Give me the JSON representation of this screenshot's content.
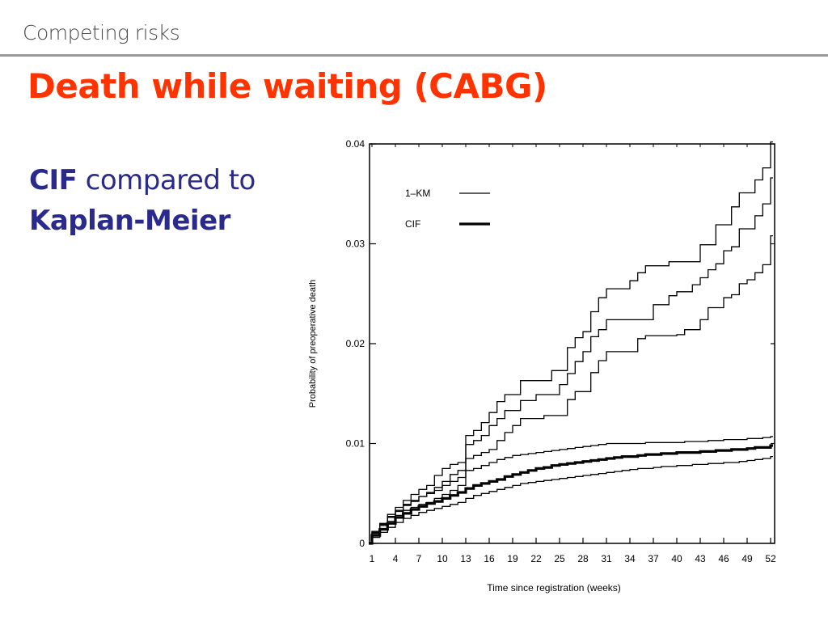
{
  "header": {
    "topic": "Competing risks",
    "title": "Death while waiting (CABG)"
  },
  "body": {
    "cif_word": "CIF",
    "compared_text": " compared to",
    "km_text": "Kaplan-Meier"
  },
  "colors": {
    "title": "#ff3300",
    "body_text": "#2a2a8c",
    "topic": "#4a4a4a",
    "lines": "#000000"
  },
  "chart_data": {
    "type": "line",
    "step": true,
    "title": "",
    "xlabel": "Time since registration (weeks)",
    "ylabel": "Probability of preoperative death",
    "xlim": [
      0,
      53
    ],
    "ylim": [
      0,
      0.04
    ],
    "x_ticks": [
      1,
      4,
      7,
      10,
      13,
      16,
      19,
      22,
      25,
      28,
      31,
      34,
      37,
      40,
      43,
      46,
      49,
      52
    ],
    "y_ticks": [
      0,
      0.01,
      0.02,
      0.03,
      0.04
    ],
    "y_tick_labels": [
      "0",
      "0.01",
      "0.02",
      "0.03",
      "0.04"
    ],
    "grid": false,
    "legend": {
      "placement": "top-left",
      "entries": [
        {
          "label": "1–KM",
          "style": "thin"
        },
        {
          "label": "CIF",
          "style": "thick"
        }
      ]
    },
    "series": [
      {
        "style": "thin",
        "x": [
          0,
          1,
          2,
          3,
          4,
          5,
          6,
          7,
          8,
          9,
          10,
          11,
          12,
          13,
          14,
          15,
          16,
          17,
          18,
          19,
          20,
          21,
          22,
          23,
          24,
          25,
          26,
          27,
          28,
          29,
          30,
          31,
          32,
          33,
          34,
          35,
          36,
          37,
          38,
          39,
          40,
          41,
          42,
          43,
          44,
          45,
          46,
          47,
          48,
          49,
          50,
          51,
          52
        ],
        "y": [
          0,
          0.0012,
          0.002,
          0.0029,
          0.0036,
          0.0043,
          0.0049,
          0.0054,
          0.0058,
          0.0068,
          0.0075,
          0.0079,
          0.0081,
          0.0108,
          0.0113,
          0.0121,
          0.0131,
          0.0142,
          0.0149,
          0.0149,
          0.0163,
          0.0163,
          0.0163,
          0.0163,
          0.0173,
          0.0173,
          0.0196,
          0.0206,
          0.0212,
          0.0232,
          0.0246,
          0.0255,
          0.0255,
          0.0255,
          0.0263,
          0.0271,
          0.0278,
          0.0278,
          0.0278,
          0.0282,
          0.0282,
          0.0282,
          0.0282,
          0.0299,
          0.0299,
          0.0319,
          0.0319,
          0.0337,
          0.0351,
          0.0351,
          0.0364,
          0.0376,
          0.0402
        ]
      },
      {
        "style": "thin",
        "x": [
          0,
          1,
          2,
          3,
          4,
          5,
          6,
          7,
          8,
          9,
          10,
          11,
          12,
          13,
          14,
          15,
          16,
          17,
          18,
          19,
          20,
          21,
          22,
          23,
          24,
          25,
          26,
          27,
          28,
          29,
          30,
          31,
          32,
          33,
          34,
          35,
          36,
          37,
          38,
          39,
          40,
          41,
          42,
          43,
          44,
          45,
          46,
          47,
          48,
          49,
          50,
          51,
          52
        ],
        "y": [
          0,
          0.001,
          0.0018,
          0.0026,
          0.0032,
          0.0038,
          0.0042,
          0.0047,
          0.0051,
          0.0056,
          0.0062,
          0.0069,
          0.0073,
          0.0099,
          0.0103,
          0.0108,
          0.0118,
          0.0125,
          0.0133,
          0.0133,
          0.0143,
          0.0143,
          0.0149,
          0.0149,
          0.0149,
          0.0159,
          0.017,
          0.0182,
          0.0192,
          0.0207,
          0.0214,
          0.0224,
          0.0224,
          0.0224,
          0.0224,
          0.0224,
          0.0224,
          0.0239,
          0.0239,
          0.0248,
          0.0252,
          0.0252,
          0.0259,
          0.0266,
          0.0274,
          0.028,
          0.0293,
          0.0297,
          0.0315,
          0.0315,
          0.0328,
          0.034,
          0.0366
        ]
      },
      {
        "style": "thin",
        "x": [
          0,
          1,
          2,
          3,
          4,
          5,
          6,
          7,
          8,
          9,
          10,
          11,
          12,
          13,
          14,
          15,
          16,
          17,
          18,
          19,
          20,
          21,
          22,
          23,
          24,
          25,
          26,
          27,
          28,
          29,
          30,
          31,
          32,
          33,
          34,
          35,
          36,
          37,
          38,
          39,
          40,
          41,
          42,
          43,
          44,
          45,
          46,
          47,
          48,
          49,
          50,
          51,
          52
        ],
        "y": [
          0,
          0.0008,
          0.0015,
          0.0022,
          0.0028,
          0.0033,
          0.0036,
          0.0039,
          0.0041,
          0.0045,
          0.0049,
          0.0053,
          0.0058,
          0.0085,
          0.0088,
          0.0091,
          0.0094,
          0.0103,
          0.0111,
          0.0118,
          0.0125,
          0.0125,
          0.0125,
          0.0128,
          0.0128,
          0.0128,
          0.0144,
          0.0152,
          0.0152,
          0.0171,
          0.0183,
          0.0192,
          0.0192,
          0.0192,
          0.0192,
          0.0205,
          0.0208,
          0.0208,
          0.0208,
          0.0208,
          0.0209,
          0.0214,
          0.0214,
          0.0224,
          0.0236,
          0.0236,
          0.0246,
          0.0249,
          0.026,
          0.0264,
          0.0271,
          0.0279,
          0.0308
        ]
      },
      {
        "style": "thin",
        "x": [
          0,
          1,
          2,
          3,
          4,
          5,
          6,
          7,
          8,
          9,
          10,
          11,
          12,
          13,
          14,
          15,
          16,
          17,
          18,
          19,
          20,
          21,
          22,
          23,
          24,
          25,
          26,
          27,
          28,
          29,
          30,
          31,
          32,
          33,
          34,
          35,
          36,
          37,
          38,
          39,
          40,
          41,
          42,
          43,
          44,
          45,
          46,
          47,
          48,
          49,
          50,
          51,
          52
        ],
        "y": [
          0,
          0.0011,
          0.0019,
          0.0027,
          0.0033,
          0.0039,
          0.0043,
          0.0047,
          0.005,
          0.0053,
          0.0058,
          0.0062,
          0.0066,
          0.0073,
          0.0075,
          0.0078,
          0.0081,
          0.0084,
          0.0086,
          0.0088,
          0.0089,
          0.009,
          0.0091,
          0.0092,
          0.0093,
          0.0094,
          0.0095,
          0.0096,
          0.0097,
          0.0098,
          0.0099,
          0.01,
          0.01,
          0.01,
          0.01,
          0.01,
          0.0101,
          0.0101,
          0.0101,
          0.0101,
          0.0101,
          0.0102,
          0.0102,
          0.0102,
          0.0103,
          0.0103,
          0.0104,
          0.0104,
          0.0104,
          0.0105,
          0.0105,
          0.0106,
          0.0107
        ]
      },
      {
        "style": "thick",
        "x": [
          0,
          1,
          2,
          3,
          4,
          5,
          6,
          7,
          8,
          9,
          10,
          11,
          12,
          13,
          14,
          15,
          16,
          17,
          18,
          19,
          20,
          21,
          22,
          23,
          24,
          25,
          26,
          27,
          28,
          29,
          30,
          31,
          32,
          33,
          34,
          35,
          36,
          37,
          38,
          39,
          40,
          41,
          42,
          43,
          44,
          45,
          46,
          47,
          48,
          49,
          50,
          51,
          52
        ],
        "y": [
          0,
          0.0008,
          0.0014,
          0.002,
          0.0026,
          0.003,
          0.0034,
          0.0037,
          0.004,
          0.0042,
          0.0045,
          0.0048,
          0.0051,
          0.0055,
          0.0058,
          0.006,
          0.0062,
          0.0064,
          0.0067,
          0.0069,
          0.0071,
          0.0073,
          0.0075,
          0.0076,
          0.0078,
          0.0079,
          0.008,
          0.0081,
          0.0082,
          0.0083,
          0.0084,
          0.0085,
          0.0086,
          0.0087,
          0.0087,
          0.0088,
          0.0089,
          0.0089,
          0.009,
          0.009,
          0.0091,
          0.0091,
          0.0091,
          0.0092,
          0.0092,
          0.0093,
          0.0093,
          0.0094,
          0.0094,
          0.0095,
          0.0096,
          0.0096,
          0.0098
        ]
      },
      {
        "style": "thin",
        "x": [
          0,
          1,
          2,
          3,
          4,
          5,
          6,
          7,
          8,
          9,
          10,
          11,
          12,
          13,
          14,
          15,
          16,
          17,
          18,
          19,
          20,
          21,
          22,
          23,
          24,
          25,
          26,
          27,
          28,
          29,
          30,
          31,
          32,
          33,
          34,
          35,
          36,
          37,
          38,
          39,
          40,
          41,
          42,
          43,
          44,
          45,
          46,
          47,
          48,
          49,
          50,
          51,
          52
        ],
        "y": [
          0,
          0.0006,
          0.0011,
          0.0016,
          0.0021,
          0.0025,
          0.0028,
          0.0031,
          0.0033,
          0.0035,
          0.0037,
          0.0039,
          0.0041,
          0.0045,
          0.0048,
          0.005,
          0.0052,
          0.0054,
          0.0056,
          0.0058,
          0.006,
          0.0061,
          0.0062,
          0.0063,
          0.0064,
          0.0065,
          0.0066,
          0.0067,
          0.0068,
          0.0069,
          0.007,
          0.0071,
          0.0072,
          0.0073,
          0.0074,
          0.0075,
          0.0075,
          0.0076,
          0.0077,
          0.0077,
          0.0078,
          0.0078,
          0.0079,
          0.0079,
          0.008,
          0.008,
          0.0081,
          0.0081,
          0.0082,
          0.0083,
          0.0084,
          0.0085,
          0.0087
        ]
      }
    ]
  }
}
